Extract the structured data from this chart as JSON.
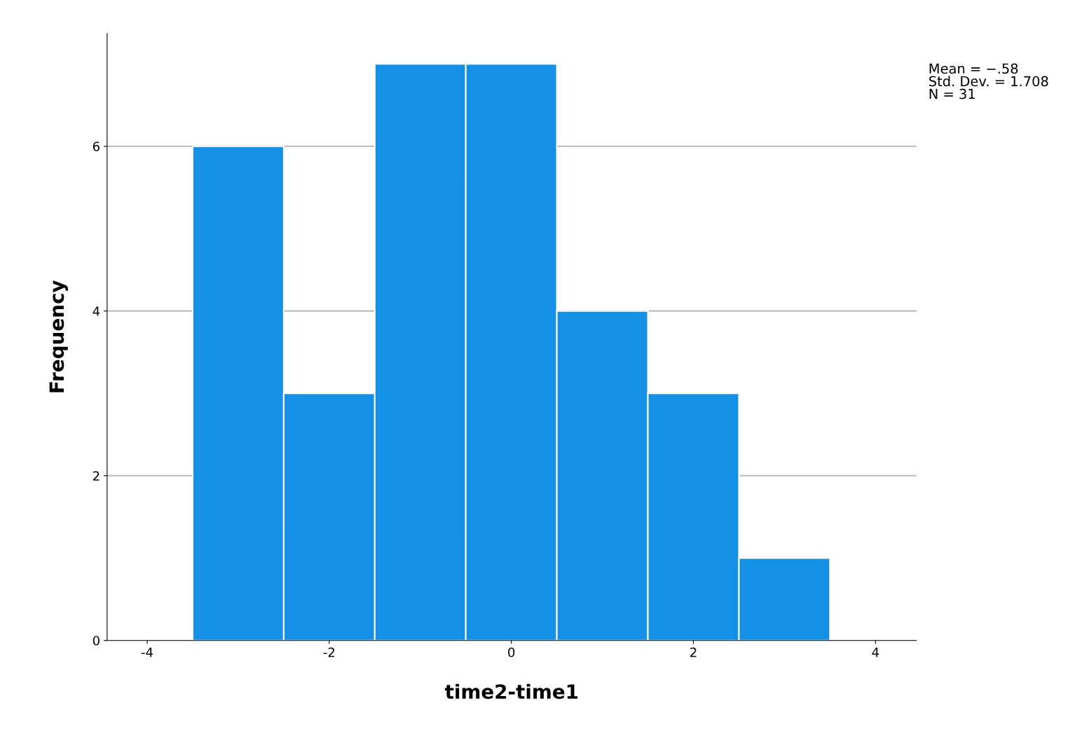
{
  "chart_data": {
    "type": "histogram",
    "xlabel": "time2-time1",
    "ylabel": "Frequency",
    "bins": [
      -3.5,
      -2.5,
      -1.5,
      -0.5,
      0.5,
      1.5,
      2.5,
      3.5
    ],
    "values": [
      6,
      3,
      7,
      7,
      4,
      3,
      1
    ],
    "color": "#1490e6",
    "xlim": [
      -4.44,
      4.45
    ],
    "xticks": [
      -4,
      -2,
      0,
      2,
      4
    ],
    "ylim": [
      0,
      7.37
    ],
    "yticks": [
      0,
      2,
      4,
      6
    ],
    "grid": "y",
    "annotations": [
      "Mean = −.58\nStd. Dev. = 1.708\nN = 31"
    ]
  }
}
